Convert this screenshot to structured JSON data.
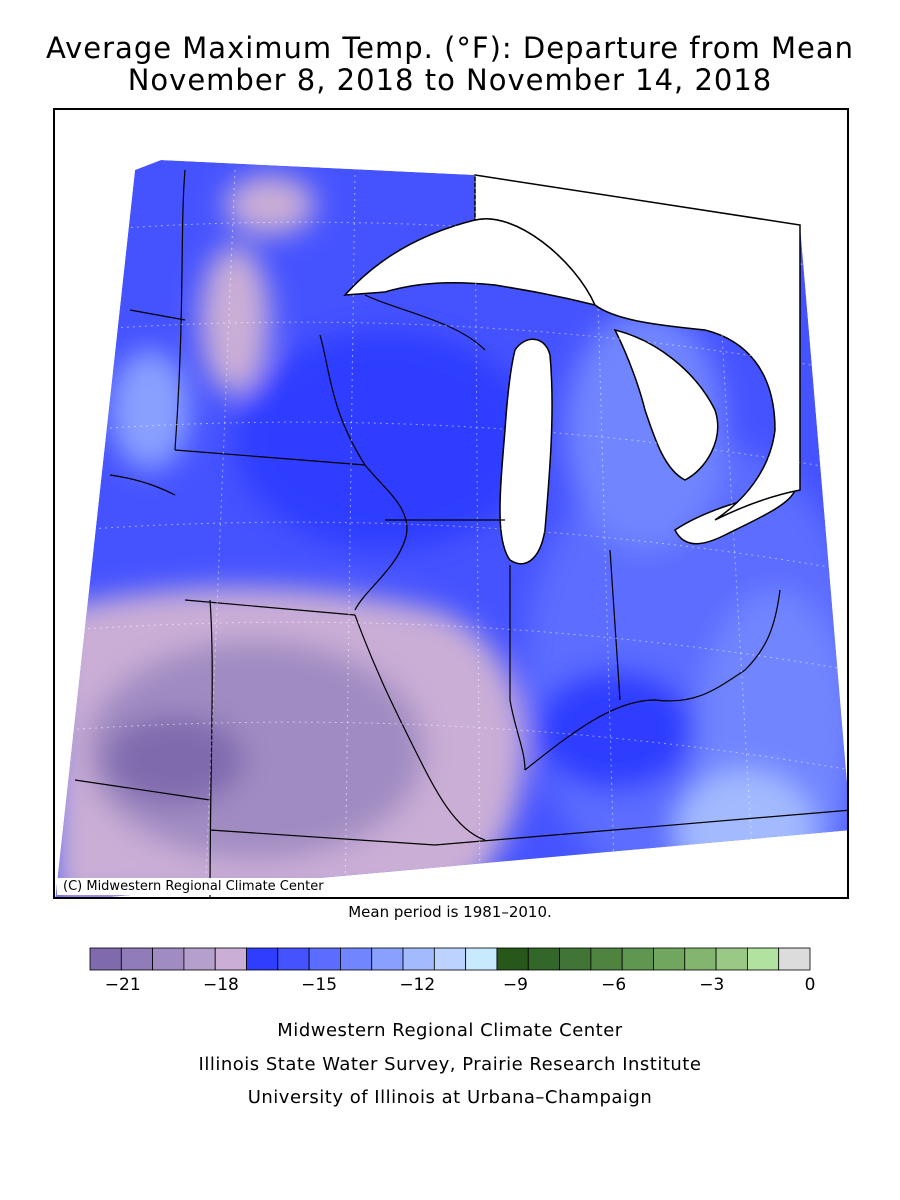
{
  "title_line1": "Average Maximum Temp. (°F): Departure from Mean",
  "title_line2": "November 8, 2018 to November 14, 2018",
  "copyright": "(C) Midwestern Regional Climate Center",
  "mean_period": "Mean period is 1981–2010.",
  "footer": [
    "Midwestern Regional Climate Center",
    "Illinois State Water Survey, Prairie Research Institute",
    "University of Illinois at Urbana–Champaign"
  ],
  "legend": {
    "colors": [
      "#7f6aae",
      "#8f7cb8",
      "#a08cc2",
      "#b59fcc",
      "#cbaed6",
      "#2f3dff",
      "#4553ff",
      "#5b6dff",
      "#7185ff",
      "#8aa0ff",
      "#a3baff",
      "#bcd2ff",
      "#c7eaff",
      "#27581a",
      "#33672a",
      "#407535",
      "#4e8340",
      "#5f9650",
      "#70a65e",
      "#84b56e",
      "#99c985",
      "#b1e2a0",
      "#dcdcdc"
    ],
    "tick_labels": [
      "−21",
      "−18",
      "−15",
      "−12",
      "−9",
      "−6",
      "−3",
      "0"
    ],
    "tick_values": [
      -21,
      -18,
      -15,
      -12,
      -9,
      -6,
      -3,
      0
    ],
    "min": -22,
    "max": 0
  },
  "map_colors": {
    "coldest": "#7f6aae",
    "very_cold": "#a08cc2",
    "cold_mauve": "#cbaed6",
    "deep_blue": "#2f3dff",
    "mid_blue": "#5b6dff",
    "light_blue": "#8aa0ff",
    "pale_blue": "#bcd2ff",
    "water": "#ffffff"
  }
}
